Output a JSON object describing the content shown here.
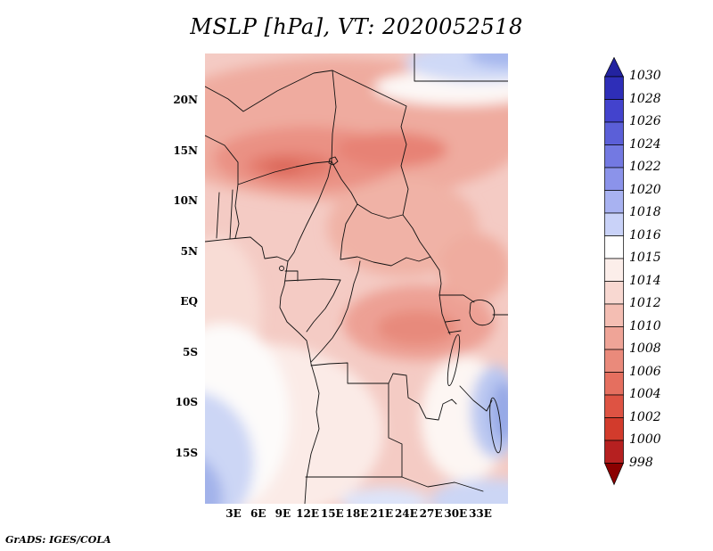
{
  "title": "MSLP [hPa], VT: 2020052518",
  "attribution": "GrADS: IGES/COLA",
  "axes": {
    "lat_ticks": [
      "20N",
      "15N",
      "10N",
      "5N",
      "EQ",
      "5S",
      "10S",
      "15S"
    ],
    "lon_ticks": [
      "3E",
      "6E",
      "9E",
      "12E",
      "15E",
      "18E",
      "21E",
      "24E",
      "27E",
      "30E",
      "33E"
    ]
  },
  "colorbar": {
    "labels": [
      "1030",
      "1028",
      "1026",
      "1024",
      "1022",
      "1020",
      "1018",
      "1016",
      "1015",
      "1014",
      "1012",
      "1010",
      "1008",
      "1006",
      "1004",
      "1002",
      "1000",
      "998"
    ],
    "colors_top_to_bottom": [
      "#2e2eb8",
      "#4343cd",
      "#5b5fd8",
      "#7379e2",
      "#8b93ea",
      "#a8b2f1",
      "#c9d2f8",
      "#ffffff",
      "#fceeea",
      "#f8d8d1",
      "#f4beb3",
      "#efa497",
      "#ea8a7b",
      "#e56f5f",
      "#de5343",
      "#d23b2c",
      "#b62020"
    ],
    "arrow_top_color": "#2323a0",
    "arrow_bottom_color": "#8b0000"
  },
  "chart_data": {
    "type": "heatmap",
    "title": "MSLP [hPa], VT: 2020052518",
    "variable": "Mean sea level pressure",
    "units": "hPa",
    "valid_time": "2020052518",
    "x_ticks": [
      "3E",
      "6E",
      "9E",
      "12E",
      "15E",
      "18E",
      "21E",
      "24E",
      "27E",
      "30E",
      "33E"
    ],
    "y_ticks": [
      "20N",
      "15N",
      "10N",
      "5N",
      "EQ",
      "5S",
      "10S",
      "15S"
    ],
    "lon_range_deg_east": [
      0,
      36
    ],
    "lat_range_deg": [
      -20,
      24
    ],
    "grid": false,
    "legend_position": "right",
    "colorbar_levels_hPa": [
      998,
      1000,
      1002,
      1004,
      1006,
      1008,
      1010,
      1012,
      1014,
      1015,
      1016,
      1018,
      1020,
      1022,
      1024,
      1026,
      1028,
      1030
    ],
    "colorbar_colors_low_to_high": [
      "#b62020",
      "#d23b2c",
      "#de5343",
      "#e56f5f",
      "#ea8a7b",
      "#efa497",
      "#f4beb3",
      "#f8d8d1",
      "#fceeea",
      "#ffffff",
      "#c9d2f8",
      "#a8b2f1",
      "#8b93ea",
      "#7379e2",
      "#5b5fd8",
      "#4343cd",
      "#2e2eb8"
    ],
    "below_min_color": "#8b0000",
    "above_max_color": "#2323a0",
    "approx_field_features": [
      {
        "description": "Sahel heat-low band (darkest red)",
        "lat": 15,
        "lon": 10,
        "value_hPa": 1005
      },
      {
        "description": "secondary low over Chad/Darfur",
        "lat": 15,
        "lon": 21,
        "value_hPa": 1006
      },
      {
        "description": "Congo basin low patch",
        "lat": -3,
        "lon": 26,
        "value_hPa": 1008
      },
      {
        "description": "background pressure over region",
        "lat": 0,
        "lon": 15,
        "value_hPa": 1011
      },
      {
        "description": "South Atlantic high (SW corner, blue)",
        "lat": -19,
        "lon": 2,
        "value_hPa": 1022
      },
      {
        "description": "higher pressure NE corner (Egypt/Libya)",
        "lat": 24,
        "lon": 32,
        "value_hPa": 1018
      },
      {
        "description": "ridge patch near Lake Malawi (blue)",
        "lat": -9,
        "lon": 35,
        "value_hPa": 1017
      },
      {
        "description": "light blue along bottom edge",
        "lat": -20,
        "lon": 22,
        "value_hPa": 1016
      }
    ]
  }
}
